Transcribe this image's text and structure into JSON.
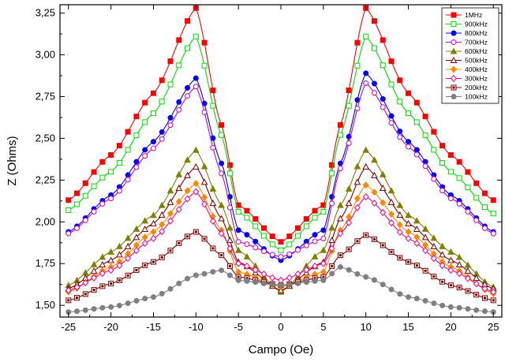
{
  "chart_data": {
    "type": "line",
    "title": "",
    "xlabel": "Campo (Oe)",
    "ylabel": "Z (Ohms)",
    "xlim": [
      -26,
      26
    ],
    "ylim": [
      1.43,
      3.3
    ],
    "xticks": [
      "-25",
      "-20",
      "-15",
      "-10",
      "-5",
      "0",
      "5",
      "10",
      "15",
      "20",
      "25"
    ],
    "yticks": [
      "1,50",
      "1,75",
      "2,00",
      "2,25",
      "2,50",
      "2,75",
      "3,00",
      "3,25"
    ],
    "legend_position": "top-right",
    "grid": false,
    "series": [
      {
        "name": "1MHz",
        "color": "#ff0000",
        "marker": "square-filled",
        "points": [
          [
            -25,
            2.13
          ],
          [
            -20,
            2.4
          ],
          [
            -15,
            2.77
          ],
          [
            -10,
            3.28
          ],
          [
            -7,
            2.58
          ],
          [
            -5,
            2.1
          ],
          [
            0,
            1.88
          ],
          [
            5,
            2.1
          ],
          [
            7,
            2.58
          ],
          [
            10,
            3.28
          ],
          [
            15,
            2.77
          ],
          [
            20,
            2.4
          ],
          [
            25,
            2.13
          ]
        ]
      },
      {
        "name": "900kHz",
        "color": "#00dd00",
        "marker": "square-open",
        "points": [
          [
            -25,
            2.07
          ],
          [
            -20,
            2.3
          ],
          [
            -15,
            2.65
          ],
          [
            -10,
            3.11
          ],
          [
            -7,
            2.52
          ],
          [
            -5,
            2.06
          ],
          [
            0,
            1.83
          ],
          [
            5,
            2.06
          ],
          [
            7,
            2.52
          ],
          [
            10,
            3.11
          ],
          [
            15,
            2.65
          ],
          [
            20,
            2.3
          ],
          [
            25,
            2.05
          ]
        ]
      },
      {
        "name": "800kHz",
        "color": "#0000ff",
        "marker": "circle-filled",
        "points": [
          [
            -25,
            1.94
          ],
          [
            -20,
            2.16
          ],
          [
            -15,
            2.48
          ],
          [
            -10,
            2.86
          ],
          [
            -7,
            2.35
          ],
          [
            -5,
            1.95
          ],
          [
            0,
            1.77
          ],
          [
            5,
            1.95
          ],
          [
            7,
            2.35
          ],
          [
            10,
            2.89
          ],
          [
            15,
            2.48
          ],
          [
            20,
            2.16
          ],
          [
            25,
            1.94
          ]
        ]
      },
      {
        "name": "700kHz",
        "color": "#cc00cc",
        "marker": "circle-open",
        "points": [
          [
            -25,
            1.93
          ],
          [
            -20,
            2.14
          ],
          [
            -15,
            2.44
          ],
          [
            -10,
            2.81
          ],
          [
            -7,
            2.29
          ],
          [
            -5,
            1.88
          ],
          [
            0,
            1.79
          ],
          [
            5,
            1.9
          ],
          [
            7,
            2.32
          ],
          [
            10,
            2.83
          ],
          [
            15,
            2.45
          ],
          [
            20,
            2.14
          ],
          [
            25,
            1.93
          ]
        ]
      },
      {
        "name": "600kHz",
        "color": "#808000",
        "marker": "triangle-filled",
        "points": [
          [
            -25,
            1.62
          ],
          [
            -20,
            1.82
          ],
          [
            -15,
            2.04
          ],
          [
            -10,
            2.43
          ],
          [
            -7,
            2.1
          ],
          [
            -5,
            1.83
          ],
          [
            0,
            1.58
          ],
          [
            5,
            1.83
          ],
          [
            7,
            2.1
          ],
          [
            10,
            2.43
          ],
          [
            15,
            2.04
          ],
          [
            20,
            1.82
          ],
          [
            25,
            1.61
          ]
        ]
      },
      {
        "name": "500kHz",
        "color": "#800000",
        "marker": "triangle-open",
        "points": [
          [
            -25,
            1.6
          ],
          [
            -20,
            1.77
          ],
          [
            -15,
            1.99
          ],
          [
            -10,
            2.33
          ],
          [
            -7,
            2.02
          ],
          [
            -5,
            1.76
          ],
          [
            0,
            1.59
          ],
          [
            5,
            1.76
          ],
          [
            7,
            2.02
          ],
          [
            10,
            2.33
          ],
          [
            15,
            1.99
          ],
          [
            20,
            1.77
          ],
          [
            25,
            1.6
          ]
        ]
      },
      {
        "name": "400kHz",
        "color": "#ff8800",
        "marker": "diamond-filled",
        "points": [
          [
            -25,
            1.58
          ],
          [
            -20,
            1.73
          ],
          [
            -15,
            1.94
          ],
          [
            -10,
            2.23
          ],
          [
            -7,
            1.95
          ],
          [
            -5,
            1.7
          ],
          [
            0,
            1.61
          ],
          [
            5,
            1.7
          ],
          [
            7,
            1.95
          ],
          [
            10,
            2.22
          ],
          [
            15,
            1.94
          ],
          [
            20,
            1.73
          ],
          [
            25,
            1.57
          ]
        ]
      },
      {
        "name": "300kHz",
        "color": "#ff0088",
        "marker": "diamond-open",
        "points": [
          [
            -25,
            1.59
          ],
          [
            -20,
            1.71
          ],
          [
            -15,
            1.9
          ],
          [
            -10,
            2.18
          ],
          [
            -7,
            1.93
          ],
          [
            -5,
            1.75
          ],
          [
            0,
            1.65
          ],
          [
            5,
            1.75
          ],
          [
            7,
            1.93
          ],
          [
            10,
            2.15
          ],
          [
            15,
            1.9
          ],
          [
            20,
            1.71
          ],
          [
            25,
            1.58
          ]
        ]
      },
      {
        "name": "200kHz",
        "color": "#800000",
        "marker": "square-dot",
        "points": [
          [
            -25,
            1.53
          ],
          [
            -20,
            1.63
          ],
          [
            -15,
            1.76
          ],
          [
            -10,
            1.94
          ],
          [
            -7,
            1.8
          ],
          [
            -5,
            1.67
          ],
          [
            0,
            1.62
          ],
          [
            5,
            1.67
          ],
          [
            7,
            1.8
          ],
          [
            10,
            1.92
          ],
          [
            15,
            1.76
          ],
          [
            20,
            1.62
          ],
          [
            25,
            1.53
          ]
        ]
      },
      {
        "name": "100kHz",
        "color": "#808080",
        "marker": "circle-dot",
        "points": [
          [
            -25,
            1.46
          ],
          [
            -20,
            1.49
          ],
          [
            -15,
            1.55
          ],
          [
            -10,
            1.68
          ],
          [
            -7,
            1.71
          ],
          [
            -5,
            1.65
          ],
          [
            0,
            1.62
          ],
          [
            5,
            1.65
          ],
          [
            7,
            1.73
          ],
          [
            10,
            1.67
          ],
          [
            15,
            1.55
          ],
          [
            20,
            1.49
          ],
          [
            25,
            1.46
          ]
        ]
      }
    ]
  }
}
